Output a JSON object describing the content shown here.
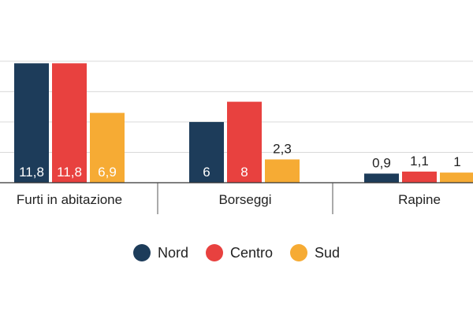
{
  "chart_data": {
    "type": "bar",
    "categories": [
      "Furti in abitazione",
      "Borseggi",
      "Rapine"
    ],
    "series": [
      {
        "name": "Nord",
        "color": "#1d3c5a",
        "values": [
          11.8,
          6,
          0.9
        ],
        "labels": [
          "11,8",
          "6",
          "0,9"
        ]
      },
      {
        "name": "Centro",
        "color": "#e8413f",
        "values": [
          11.8,
          8,
          1.1
        ],
        "labels": [
          "11,8",
          "8",
          "1,1"
        ]
      },
      {
        "name": "Sud",
        "color": "#f6ab34",
        "values": [
          6.9,
          2.3,
          1
        ],
        "labels": [
          "6,9",
          "2,3",
          "1"
        ]
      }
    ],
    "ylim": [
      0,
      12
    ],
    "grid": true,
    "legend_position": "bottom"
  }
}
